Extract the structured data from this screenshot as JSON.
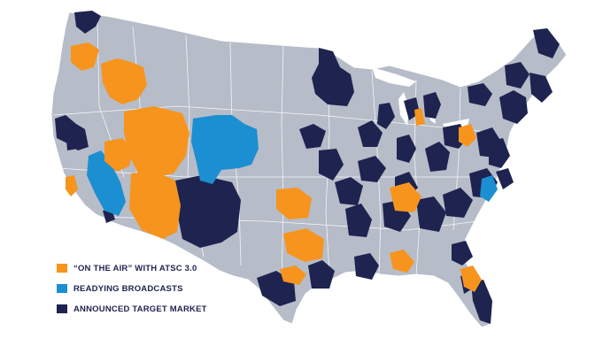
{
  "colors": {
    "background": "#ffffff",
    "land": "#b6bcc8",
    "boundary": "#ffffff",
    "on_air": "#f7941d",
    "readying": "#1b8fd1",
    "announced": "#1e2350"
  },
  "legend": {
    "items": [
      {
        "label": "“ON THE AIR” WITH ATSC 3.0",
        "color": "#f7941d"
      },
      {
        "label": "READYING BROADCASTS",
        "color": "#1b8fd1"
      },
      {
        "label": "ANNOUNCED TARGET MARKET",
        "color": "#1e2350"
      }
    ]
  }
}
